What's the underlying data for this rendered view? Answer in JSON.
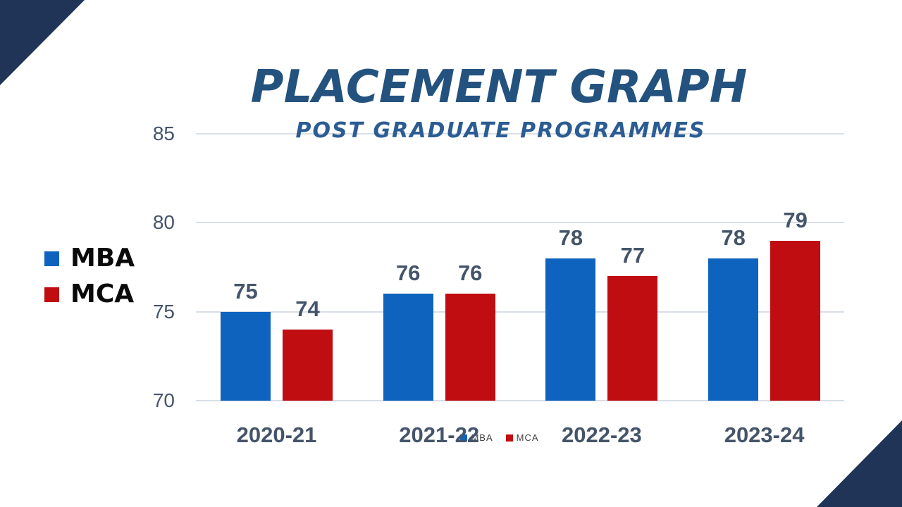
{
  "title": "PLACEMENT GRAPH",
  "subtitle": "POST GRADUATE PROGRAMMES",
  "chart_data": {
    "type": "bar",
    "categories": [
      "2020-21",
      "2021-22",
      "2022-23",
      "2023-24"
    ],
    "series": [
      {
        "name": "MBA",
        "color": "#0E63BE",
        "values": [
          75,
          76,
          78,
          78
        ]
      },
      {
        "name": "MCA",
        "color": "#C00D12",
        "values": [
          74,
          76,
          77,
          79
        ]
      }
    ],
    "ylim": [
      70,
      85
    ],
    "yticks": [
      70,
      75,
      80,
      85
    ],
    "grid": true,
    "legend_positions": [
      "left",
      "bottom"
    ]
  },
  "colors": {
    "mba": "#0E63BE",
    "mca": "#C00D12",
    "corner_triangle": "#1F3456",
    "title": "#24527E",
    "subtitle": "#2B5C93",
    "axis_label": "#44546A",
    "data_label": "#44546A",
    "category_label": "#44546A",
    "gridline": "#D9DEE7",
    "legend_left_text": "#0A0A0A",
    "legend_bottom_text": "#404040"
  }
}
